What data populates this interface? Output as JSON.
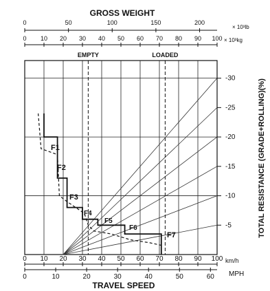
{
  "chart_data": {
    "type": "line",
    "title_top": "GROSS WEIGHT",
    "gross_weight_lb": {
      "unit": "× 10³lb",
      "ticks": [
        "0",
        "50",
        "100",
        "150",
        "200"
      ]
    },
    "gross_weight_kg": {
      "unit": "× 10³kg",
      "ticks": [
        "0",
        "10",
        "20",
        "30",
        "40",
        "50",
        "60",
        "70",
        "80",
        "90",
        "100"
      ]
    },
    "weight_markers": [
      {
        "label": "EMPTY",
        "weight_kg": 33
      },
      {
        "label": "LOADED",
        "weight_kg": 73
      }
    ],
    "resistance_axis": {
      "label": "TOTAL RESISTANCE (GRADE+ROLLING)(%)",
      "ticks": [
        "5",
        "10",
        "15",
        "20",
        "25",
        "30"
      ],
      "values": [
        5,
        10,
        15,
        20,
        25,
        30
      ],
      "range": [
        0,
        33
      ]
    },
    "speed_kmh_axis": {
      "unit": "km/h",
      "ticks": [
        "0",
        "10",
        "20",
        "30",
        "40",
        "50",
        "60",
        "70",
        "80",
        "90",
        "100"
      ],
      "range": [
        0,
        100
      ]
    },
    "speed_mph_axis": {
      "unit": "MPH",
      "ticks": [
        "0",
        "10",
        "20",
        "30",
        "40",
        "50",
        "60"
      ]
    },
    "xlabel": "TRAVEL SPEED",
    "gears": [
      "F1",
      "F2",
      "F3",
      "F4",
      "F5",
      "F6",
      "F7"
    ],
    "rimpull_solid": [
      [
        10,
        24
      ],
      [
        10,
        20
      ],
      [
        17,
        20
      ],
      [
        17,
        13
      ],
      [
        22,
        13
      ],
      [
        22,
        8
      ],
      [
        30,
        8
      ],
      [
        30,
        6
      ],
      [
        38,
        6
      ],
      [
        38,
        5
      ],
      [
        52,
        5
      ],
      [
        52,
        3.5
      ],
      [
        71,
        3.5
      ],
      [
        71,
        0
      ]
    ],
    "rimpull_dashed": [
      [
        7,
        24
      ],
      [
        8.5,
        18
      ],
      [
        17,
        17
      ],
      [
        18,
        10
      ],
      [
        22,
        9
      ],
      [
        31,
        7
      ],
      [
        33,
        5
      ],
      [
        36,
        4
      ],
      [
        45,
        3.5
      ],
      [
        55,
        2.5
      ],
      [
        65,
        2
      ],
      [
        72,
        1.5
      ]
    ],
    "resistance_lines_pct": [
      5,
      10,
      15,
      20,
      25,
      30
    ]
  }
}
